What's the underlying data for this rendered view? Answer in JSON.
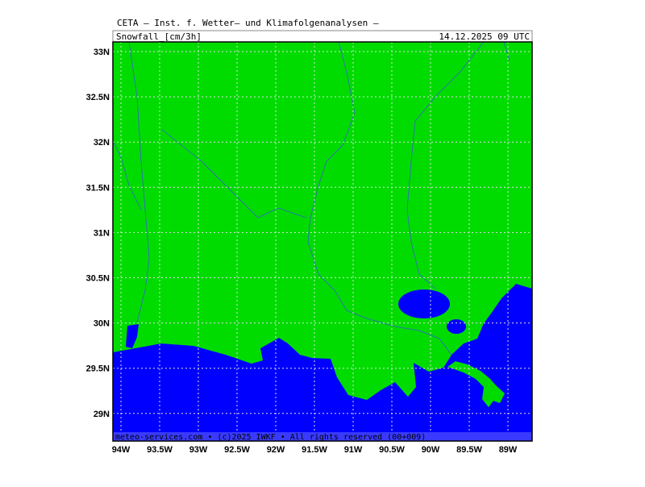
{
  "header": {
    "title": "CETA – Inst. f. Wetter– und Klimafolgenanalysen –",
    "field": "Snowfall_[cm/3h]",
    "time": "14.12.2025 09 UTC"
  },
  "longitudes": [
    "94W",
    "93.5W",
    "93W",
    "92.5W",
    "92W",
    "91.5W",
    "91W",
    "90.5W",
    "90W",
    "89.5W",
    "89W"
  ],
  "latitudes": [
    "33N",
    "32.5N",
    "32N",
    "31.5N",
    "31N",
    "30.5N",
    "30N",
    "29.5N",
    "29N"
  ],
  "footer": "meteo-services.com • (c)2025 IWKF • All rights reserved (00+009)"
}
